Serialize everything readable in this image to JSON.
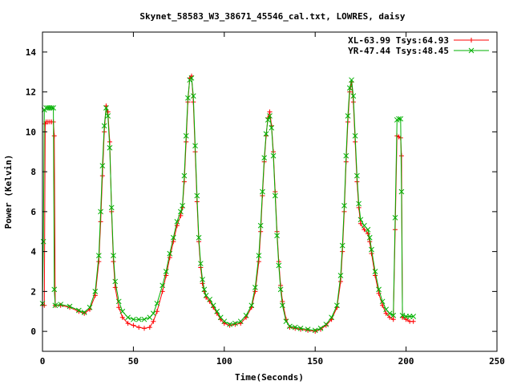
{
  "chart_data": {
    "type": "line",
    "title": "Skynet_58583_W3_38671_45546_cal.txt, LOWRES, daisy",
    "xlabel": "Time(Seconds)",
    "ylabel": "Power (Kelvin)",
    "xlim": [
      0,
      250
    ],
    "ylim": [
      -1,
      15
    ],
    "xticks": [
      0,
      50,
      100,
      150,
      200,
      250
    ],
    "yticks": [
      0,
      2,
      4,
      6,
      8,
      10,
      12,
      14
    ],
    "grid": false,
    "legend_position": "top-right",
    "series": [
      {
        "name": "XL-63.99 Tsys:64.93",
        "color": "#ff0000",
        "marker": "plus",
        "points": [
          [
            0,
            1.3
          ],
          [
            1,
            1.3
          ],
          [
            1.5,
            10.4
          ],
          [
            2,
            10.5
          ],
          [
            3,
            10.5
          ],
          [
            4,
            10.5
          ],
          [
            5,
            10.5
          ],
          [
            6,
            10.5
          ],
          [
            6.5,
            9.8
          ],
          [
            7,
            1.3
          ],
          [
            10,
            1.3
          ],
          [
            15,
            1.2
          ],
          [
            20,
            1.0
          ],
          [
            23,
            0.9
          ],
          [
            26,
            1.1
          ],
          [
            29,
            1.8
          ],
          [
            31,
            3.5
          ],
          [
            32,
            5.5
          ],
          [
            33,
            7.8
          ],
          [
            34,
            10.0
          ],
          [
            35,
            11.3
          ],
          [
            36,
            11.0
          ],
          [
            37,
            9.5
          ],
          [
            38,
            6.0
          ],
          [
            39,
            3.5
          ],
          [
            40,
            2.2
          ],
          [
            42,
            1.2
          ],
          [
            44,
            0.7
          ],
          [
            47,
            0.4
          ],
          [
            50,
            0.3
          ],
          [
            53,
            0.2
          ],
          [
            56,
            0.15
          ],
          [
            59,
            0.2
          ],
          [
            61,
            0.5
          ],
          [
            63,
            1.0
          ],
          [
            66,
            2.0
          ],
          [
            68,
            2.8
          ],
          [
            70,
            3.7
          ],
          [
            72,
            4.5
          ],
          [
            74,
            5.3
          ],
          [
            76,
            5.8
          ],
          [
            77,
            6.2
          ],
          [
            78,
            7.5
          ],
          [
            79,
            9.5
          ],
          [
            80,
            11.5
          ],
          [
            81,
            12.7
          ],
          [
            82,
            12.8
          ],
          [
            83,
            11.5
          ],
          [
            84,
            9.0
          ],
          [
            85,
            6.5
          ],
          [
            86,
            4.5
          ],
          [
            87,
            3.2
          ],
          [
            88,
            2.4
          ],
          [
            89,
            2.0
          ],
          [
            90,
            1.7
          ],
          [
            92,
            1.5
          ],
          [
            94,
            1.2
          ],
          [
            96,
            0.9
          ],
          [
            98,
            0.6
          ],
          [
            100,
            0.4
          ],
          [
            103,
            0.3
          ],
          [
            106,
            0.35
          ],
          [
            109,
            0.4
          ],
          [
            112,
            0.7
          ],
          [
            115,
            1.2
          ],
          [
            117,
            2.0
          ],
          [
            119,
            3.5
          ],
          [
            120,
            5.0
          ],
          [
            121,
            6.8
          ],
          [
            122,
            8.5
          ],
          [
            123,
            9.8
          ],
          [
            124,
            10.7
          ],
          [
            125,
            11.0
          ],
          [
            126,
            10.3
          ],
          [
            127,
            9.0
          ],
          [
            128,
            7.0
          ],
          [
            129,
            5.0
          ],
          [
            130,
            3.5
          ],
          [
            131,
            2.3
          ],
          [
            132,
            1.5
          ],
          [
            134,
            0.6
          ],
          [
            136,
            0.2
          ],
          [
            139,
            0.15
          ],
          [
            142,
            0.1
          ],
          [
            146,
            0.05
          ],
          [
            150,
            0.0
          ],
          [
            153,
            0.1
          ],
          [
            156,
            0.3
          ],
          [
            159,
            0.6
          ],
          [
            162,
            1.2
          ],
          [
            164,
            2.5
          ],
          [
            165,
            4.0
          ],
          [
            166,
            6.0
          ],
          [
            167,
            8.5
          ],
          [
            168,
            10.5
          ],
          [
            169,
            12.0
          ],
          [
            170,
            12.5
          ],
          [
            171,
            11.5
          ],
          [
            172,
            9.5
          ],
          [
            173,
            7.5
          ],
          [
            174,
            6.2
          ],
          [
            175,
            5.4
          ],
          [
            177,
            5.1
          ],
          [
            179,
            4.9
          ],
          [
            180,
            4.5
          ],
          [
            181,
            3.9
          ],
          [
            183,
            2.8
          ],
          [
            185,
            1.9
          ],
          [
            187,
            1.3
          ],
          [
            189,
            0.9
          ],
          [
            191,
            0.7
          ],
          [
            193,
            0.6
          ],
          [
            194,
            5.1
          ],
          [
            195,
            9.8
          ],
          [
            196,
            9.75
          ],
          [
            197,
            9.7
          ],
          [
            197.5,
            8.8
          ],
          [
            198,
            0.7
          ],
          [
            200,
            0.6
          ],
          [
            202,
            0.5
          ],
          [
            204,
            0.5
          ]
        ]
      },
      {
        "name": "YR-47.44 Tsys:48.45",
        "color": "#00b000",
        "marker": "cross",
        "points": [
          [
            0,
            1.4
          ],
          [
            0.5,
            4.5
          ],
          [
            1,
            11.1
          ],
          [
            2,
            11.2
          ],
          [
            3,
            11.2
          ],
          [
            4,
            11.2
          ],
          [
            5,
            11.2
          ],
          [
            6,
            11.2
          ],
          [
            6.5,
            2.1
          ],
          [
            7,
            1.3
          ],
          [
            10,
            1.35
          ],
          [
            15,
            1.25
          ],
          [
            20,
            1.05
          ],
          [
            23,
            0.95
          ],
          [
            26,
            1.2
          ],
          [
            29,
            2.0
          ],
          [
            31,
            3.8
          ],
          [
            32,
            6.0
          ],
          [
            33,
            8.3
          ],
          [
            34,
            10.3
          ],
          [
            35,
            11.2
          ],
          [
            36,
            10.8
          ],
          [
            37,
            9.2
          ],
          [
            38,
            6.2
          ],
          [
            39,
            3.8
          ],
          [
            40,
            2.5
          ],
          [
            42,
            1.5
          ],
          [
            44,
            1.0
          ],
          [
            47,
            0.7
          ],
          [
            50,
            0.6
          ],
          [
            53,
            0.6
          ],
          [
            56,
            0.6
          ],
          [
            59,
            0.7
          ],
          [
            61,
            0.9
          ],
          [
            63,
            1.4
          ],
          [
            66,
            2.3
          ],
          [
            68,
            3.0
          ],
          [
            70,
            3.9
          ],
          [
            72,
            4.7
          ],
          [
            74,
            5.5
          ],
          [
            76,
            6.0
          ],
          [
            77,
            6.3
          ],
          [
            78,
            7.8
          ],
          [
            79,
            9.8
          ],
          [
            80,
            11.7
          ],
          [
            81,
            12.6
          ],
          [
            82,
            12.7
          ],
          [
            83,
            11.8
          ],
          [
            84,
            9.3
          ],
          [
            85,
            6.8
          ],
          [
            86,
            4.7
          ],
          [
            87,
            3.4
          ],
          [
            88,
            2.6
          ],
          [
            89,
            2.1
          ],
          [
            90,
            1.8
          ],
          [
            92,
            1.6
          ],
          [
            94,
            1.3
          ],
          [
            96,
            1.0
          ],
          [
            98,
            0.7
          ],
          [
            100,
            0.5
          ],
          [
            103,
            0.35
          ],
          [
            106,
            0.4
          ],
          [
            109,
            0.5
          ],
          [
            112,
            0.8
          ],
          [
            115,
            1.3
          ],
          [
            117,
            2.2
          ],
          [
            119,
            3.8
          ],
          [
            120,
            5.3
          ],
          [
            121,
            7.0
          ],
          [
            122,
            8.7
          ],
          [
            123,
            9.9
          ],
          [
            124,
            10.6
          ],
          [
            125,
            10.8
          ],
          [
            126,
            10.2
          ],
          [
            127,
            8.8
          ],
          [
            128,
            6.8
          ],
          [
            129,
            4.8
          ],
          [
            130,
            3.3
          ],
          [
            131,
            2.1
          ],
          [
            132,
            1.3
          ],
          [
            134,
            0.5
          ],
          [
            136,
            0.25
          ],
          [
            139,
            0.2
          ],
          [
            142,
            0.15
          ],
          [
            146,
            0.1
          ],
          [
            150,
            0.05
          ],
          [
            153,
            0.15
          ],
          [
            156,
            0.35
          ],
          [
            159,
            0.7
          ],
          [
            162,
            1.3
          ],
          [
            164,
            2.8
          ],
          [
            165,
            4.3
          ],
          [
            166,
            6.3
          ],
          [
            167,
            8.8
          ],
          [
            168,
            10.8
          ],
          [
            169,
            12.2
          ],
          [
            170,
            12.6
          ],
          [
            171,
            11.8
          ],
          [
            172,
            9.8
          ],
          [
            173,
            7.8
          ],
          [
            174,
            6.4
          ],
          [
            175,
            5.6
          ],
          [
            177,
            5.3
          ],
          [
            179,
            5.1
          ],
          [
            180,
            4.7
          ],
          [
            181,
            4.1
          ],
          [
            183,
            3.0
          ],
          [
            185,
            2.1
          ],
          [
            187,
            1.5
          ],
          [
            189,
            1.1
          ],
          [
            191,
            0.9
          ],
          [
            193,
            0.8
          ],
          [
            194,
            5.7
          ],
          [
            195,
            10.6
          ],
          [
            196,
            10.65
          ],
          [
            197,
            10.65
          ],
          [
            197.5,
            7.0
          ],
          [
            198,
            0.8
          ],
          [
            200,
            0.75
          ],
          [
            202,
            0.75
          ],
          [
            204,
            0.75
          ]
        ]
      }
    ]
  }
}
